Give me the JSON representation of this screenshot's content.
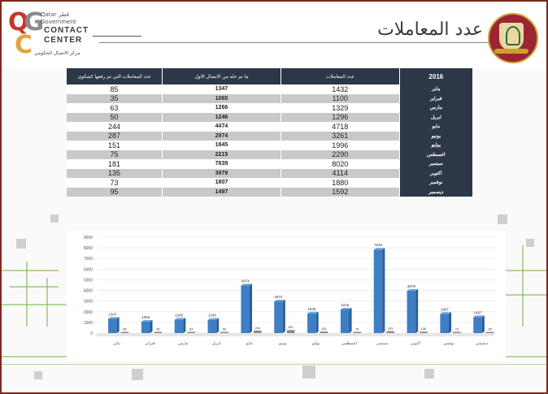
{
  "header": {
    "logo_letters": "QGCC",
    "logo_ar_top": "قطر",
    "logo_line1": "Qatar",
    "logo_line2": "Government",
    "logo_line3": "CONTACT",
    "logo_line4": "CENTER",
    "logo_sub": "مركز الاتصال الحكومي",
    "title": "عدد المعاملات"
  },
  "table": {
    "col_year": "2016",
    "col_transactions": "عدد المعاملات",
    "col_resolved": "ما تم حله من الاتصال الاول",
    "col_complaints": "عدد المعاملات التي تم رفعها كشكوى",
    "rows": [
      {
        "month": "يناير",
        "transactions": "1432",
        "resolved": "1347",
        "complaints": "85"
      },
      {
        "month": "فبراير",
        "transactions": "1100",
        "resolved": "1065",
        "complaints": "35"
      },
      {
        "month": "مارس",
        "transactions": "1329",
        "resolved": "1266",
        "complaints": "63"
      },
      {
        "month": "ابريل",
        "transactions": "1296",
        "resolved": "1246",
        "complaints": "50"
      },
      {
        "month": "مايو",
        "transactions": "4718",
        "resolved": "4474",
        "complaints": "244"
      },
      {
        "month": "يونيو",
        "transactions": "3261",
        "resolved": "2974",
        "complaints": "287"
      },
      {
        "month": "يوليو",
        "transactions": "1996",
        "resolved": "1845",
        "complaints": "151"
      },
      {
        "month": "اغسطس",
        "transactions": "2290",
        "resolved": "2215",
        "complaints": "75"
      },
      {
        "month": "سبتمبر",
        "transactions": "8020",
        "resolved": "7839",
        "complaints": "181"
      },
      {
        "month": "اكتوبر",
        "transactions": "4114",
        "resolved": "3979",
        "complaints": "135"
      },
      {
        "month": "نوفمبر",
        "transactions": "1880",
        "resolved": "1807",
        "complaints": "73"
      },
      {
        "month": "ديسمبر",
        "transactions": "1592",
        "resolved": "1497",
        "complaints": "95"
      }
    ]
  },
  "chart_data": {
    "type": "bar",
    "title": "",
    "xlabel": "",
    "ylabel": "",
    "categories": [
      "يناير",
      "فبراير",
      "مارس",
      "ابريل",
      "مايو",
      "يونيو",
      "يوليو",
      "اغسطس",
      "سبتمبر",
      "اكتوبر",
      "نوفمبر",
      "ديسمبر"
    ],
    "series": [
      {
        "values": [
          1347,
          1065,
          1266,
          1246,
          4474,
          2974,
          1845,
          2215,
          7839,
          3979,
          1807,
          1497
        ],
        "color": "#3d7fc4"
      },
      {
        "values": [
          85,
          35,
          63,
          50,
          244,
          287,
          151,
          75,
          181,
          135,
          73,
          95
        ],
        "color": "#8a8a8a"
      }
    ],
    "yticks": [
      "0",
      "1000",
      "2000",
      "3000",
      "4000",
      "5000",
      "6000",
      "7000",
      "8000",
      "9000"
    ],
    "ylim": [
      0,
      9000
    ],
    "grid": true,
    "data_labels_series0": [
      "1347",
      "1065",
      "1266",
      "1246",
      "4474",
      "2974",
      "1845",
      "2215",
      "7839",
      "3979",
      "1807",
      "1497"
    ],
    "data_labels_series1": [
      "85",
      "35",
      "63",
      "50",
      "244",
      "287",
      "151",
      "75",
      "181",
      "135",
      "73",
      "95"
    ]
  },
  "colors": {
    "frame": "#7a2a1c",
    "table_header": "#2c3747",
    "row_alt": "#c9c9c9",
    "bar_primary": "#3d7fc4",
    "bar_secondary": "#8a8a8a",
    "circuit": "#7ab648"
  }
}
